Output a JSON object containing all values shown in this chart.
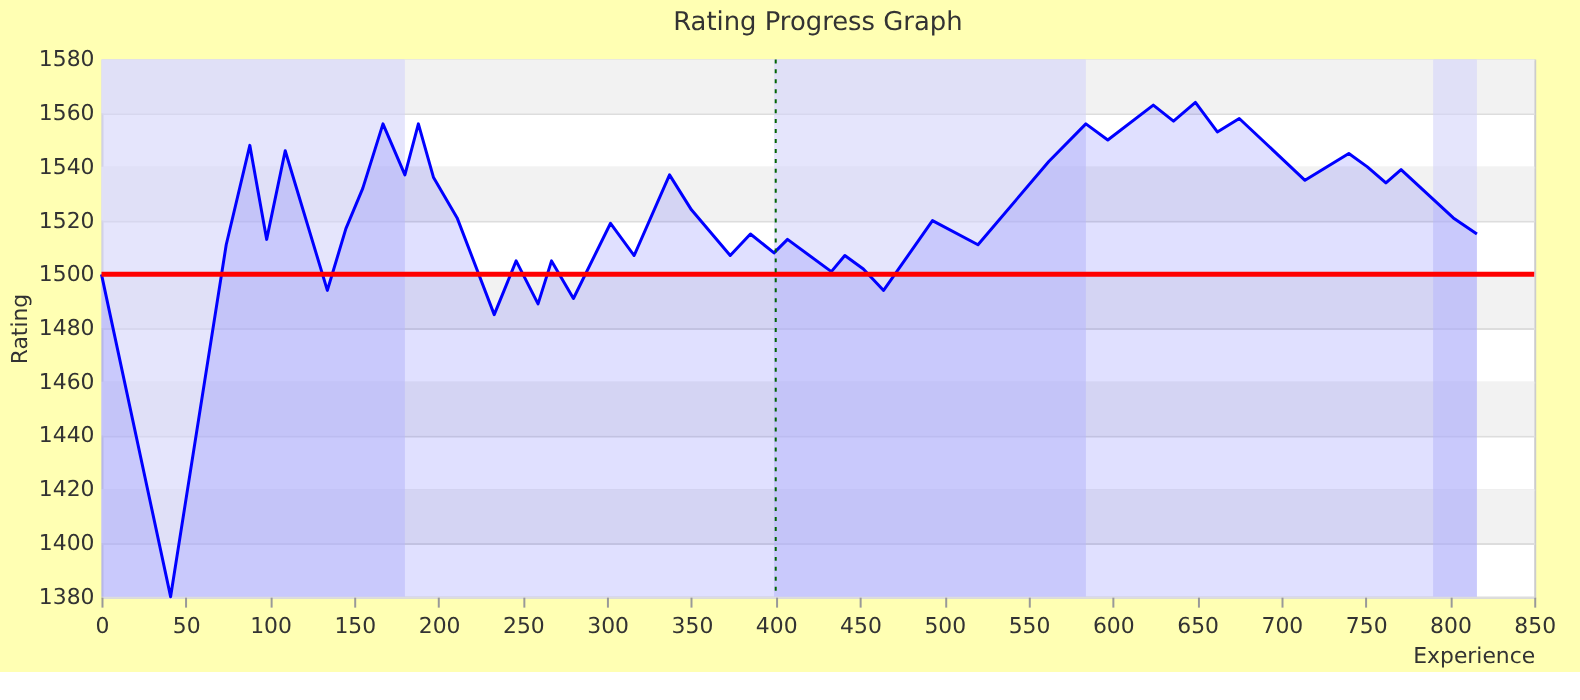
{
  "chart_data": {
    "type": "area",
    "title": "Rating Progress Graph",
    "xlabel": "Experience",
    "ylabel": "Rating",
    "x": [
      0,
      41,
      74,
      88,
      98,
      109,
      134,
      145,
      155,
      167,
      180,
      188,
      197,
      211,
      233,
      246,
      259,
      267,
      280,
      302,
      316,
      337,
      350,
      373,
      385,
      399,
      407,
      433,
      441,
      452,
      464,
      493,
      520,
      562,
      584,
      597,
      624,
      636,
      649,
      662,
      675,
      714,
      740,
      751,
      762,
      771,
      802,
      816
    ],
    "series": [
      {
        "color": "#0000ff",
        "values": [
          1500,
          1380,
          1511,
          1548,
          1513,
          1546,
          1494,
          1517,
          1532,
          1556,
          1537,
          1556,
          1536,
          1521,
          1485,
          1505,
          1489,
          1505,
          1491,
          1519,
          1507,
          1537,
          1524,
          1507,
          1515,
          1508,
          1513,
          1501,
          1507,
          1502,
          1494,
          1520,
          1511,
          1542,
          1556,
          1550,
          1563,
          1557,
          1564,
          1553,
          1558,
          1535,
          1545,
          1540,
          1534,
          1539,
          1521,
          1515
        ]
      }
    ],
    "xlim": [
      0,
      850
    ],
    "xticks": [
      0,
      50,
      100,
      150,
      200,
      250,
      300,
      350,
      400,
      450,
      500,
      550,
      600,
      650,
      700,
      750,
      800,
      850
    ],
    "ylim": [
      1380,
      1580
    ],
    "yticks": [
      1380,
      1400,
      1420,
      1440,
      1460,
      1480,
      1500,
      1520,
      1540,
      1560,
      1580
    ],
    "grid": "y",
    "ref_lines": [
      {
        "axis": "y",
        "value": 1500,
        "color": "#ff0000",
        "line_style": "solid"
      },
      {
        "axis": "x",
        "value": 400,
        "color": "#006400",
        "line_style": "dotted"
      }
    ],
    "bands": [
      {
        "axis": "x",
        "from": 0,
        "to": 180,
        "color": "#d4d4fa"
      },
      {
        "axis": "x",
        "from": 399,
        "to": 584,
        "color": "#d4d4fa"
      },
      {
        "axis": "x",
        "from": 790,
        "to": 816,
        "color": "#d4d4fa"
      }
    ]
  }
}
